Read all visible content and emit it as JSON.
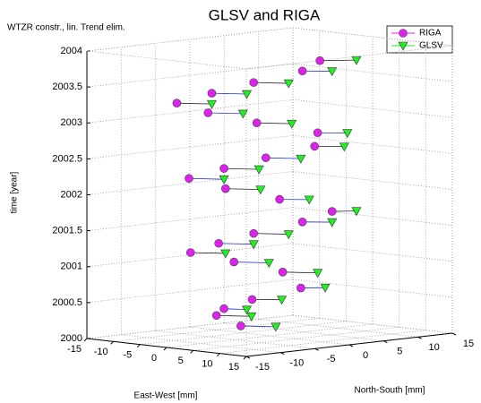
{
  "chart_data": {
    "type": "scatter3d",
    "title": "GLSV and RIGA",
    "annotation": "WTZR constr., lin. Trend elim.",
    "xlabel": "East-West [mm]",
    "ylabel": "North-South [mm]",
    "zlabel": "time [year]",
    "xlim": [
      -15,
      15
    ],
    "ylim": [
      -15,
      15
    ],
    "zlim": [
      2000,
      2004
    ],
    "xticks": [
      -15,
      -10,
      -5,
      0,
      5,
      10,
      15
    ],
    "yticks": [
      -15,
      -10,
      -5,
      0,
      5,
      10,
      15
    ],
    "zticks": [
      2000,
      2000.5,
      2001,
      2001.5,
      2002,
      2002.5,
      2003,
      2003.5,
      2004
    ],
    "grid": true,
    "legend": "upper right",
    "series": [
      {
        "name": "RIGA",
        "color": "#dd22ee",
        "marker": "circle",
        "x": [
          -8,
          -10,
          -6,
          -2,
          2,
          -4,
          -8,
          -11,
          -7,
          -3,
          1,
          4,
          -2,
          -7,
          -10,
          -6,
          -2,
          2,
          0,
          -5,
          -9,
          -11,
          -7,
          -3,
          1,
          3
        ],
        "y": [
          2,
          0,
          -2,
          -1,
          3,
          5,
          1,
          -3,
          -2,
          0,
          4,
          6,
          3,
          -1,
          -4,
          -2,
          1,
          5,
          7,
          2,
          -2,
          -5,
          -3,
          0,
          4,
          5
        ],
        "z": [
          2000.05,
          2000.2,
          2000.35,
          2000.5,
          2000.65,
          2000.8,
          2000.95,
          2001.1,
          2001.25,
          2001.4,
          2001.55,
          2001.7,
          2001.85,
          2002.0,
          2002.15,
          2002.3,
          2002.45,
          2002.6,
          2002.75,
          2002.9,
          2003.05,
          2003.2,
          2003.35,
          2003.5,
          2003.65,
          2003.8
        ]
      },
      {
        "name": "GLSV",
        "color": "#22ee22",
        "marker": "triangle-down",
        "x": [
          -4,
          -6,
          -3,
          1,
          4,
          0,
          -4,
          -7,
          -3,
          1,
          4,
          6,
          1,
          -3,
          -6,
          -2,
          2,
          5,
          3,
          -1,
          -5,
          -7,
          -3,
          1,
          4,
          6
        ],
        "y": [
          4,
          2,
          -1,
          1,
          5,
          7,
          3,
          -1,
          0,
          2,
          6,
          8,
          5,
          1,
          -2,
          0,
          3,
          7,
          9,
          4,
          0,
          -3,
          -1,
          2,
          6,
          8
        ],
        "z": [
          2000.05,
          2000.2,
          2000.35,
          2000.5,
          2000.65,
          2000.8,
          2000.95,
          2001.1,
          2001.25,
          2001.4,
          2001.55,
          2001.7,
          2001.85,
          2002.0,
          2002.15,
          2002.3,
          2002.45,
          2002.6,
          2002.75,
          2002.9,
          2003.05,
          2003.2,
          2003.35,
          2003.5,
          2003.65,
          2003.8
        ]
      }
    ]
  }
}
